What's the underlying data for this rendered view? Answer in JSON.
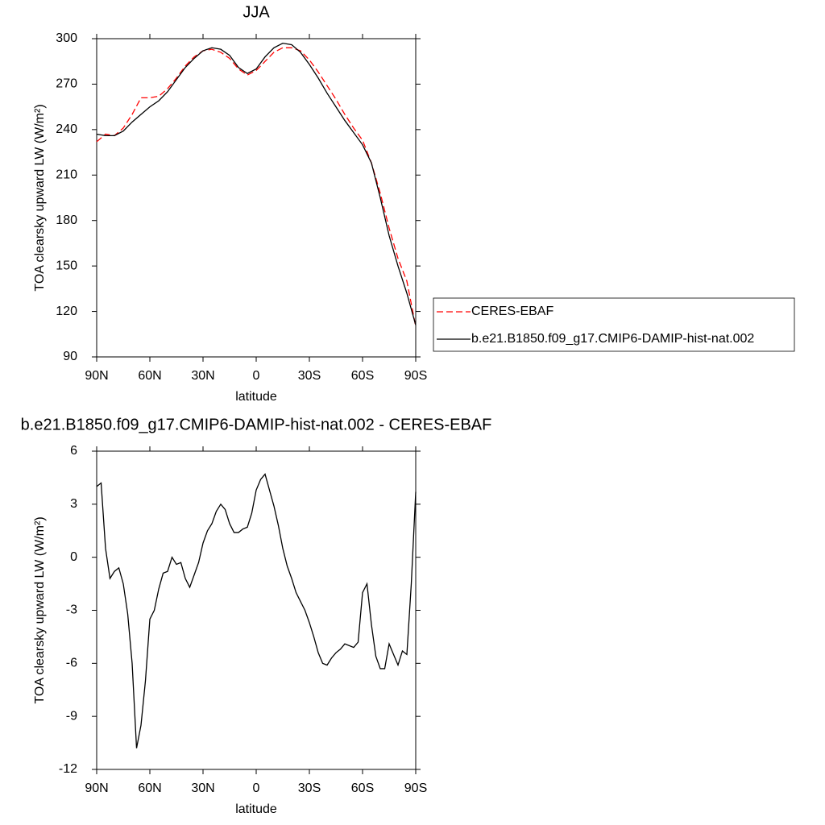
{
  "chart_data": [
    {
      "type": "line",
      "title": "JJA",
      "x_label": "latitude",
      "y_label": "TOA clearsky upward LW (W/m²)",
      "x": [
        90,
        85,
        80,
        75,
        70,
        65,
        60,
        55,
        50,
        45,
        40,
        35,
        30,
        25,
        20,
        15,
        10,
        5,
        0,
        -5,
        -10,
        -15,
        -20,
        -25,
        -30,
        -35,
        -40,
        -45,
        -50,
        -55,
        -60,
        -65,
        -70,
        -75,
        -80,
        -85,
        -90
      ],
      "series": [
        {
          "name": "CERES-EBAF",
          "color": "#ff0000",
          "dashed": true,
          "values": [
            232,
            237,
            236,
            241,
            250,
            261,
            261,
            262,
            267,
            274,
            282,
            288,
            292,
            293,
            291,
            287,
            280,
            276,
            279,
            285,
            291,
            294,
            294,
            292,
            286,
            278,
            269,
            260,
            250,
            241,
            233,
            218,
            198,
            175,
            155,
            140,
            110
          ]
        },
        {
          "name": "b.e21.B1850.f09_g17.CMIP6-DAMIP-hist-nat.002",
          "color": "#000000",
          "dashed": false,
          "values": [
            237,
            236,
            236,
            239,
            245,
            250,
            255,
            259,
            265,
            273,
            281,
            287,
            292,
            294,
            293,
            289,
            281,
            277,
            280,
            288,
            294,
            297,
            296,
            291,
            283,
            274,
            264,
            255,
            246,
            238,
            230,
            218,
            195,
            170,
            150,
            132,
            111
          ]
        }
      ],
      "xlim": [
        90,
        -90
      ],
      "xticks": [
        {
          "value": 90,
          "label": "90N"
        },
        {
          "value": 60,
          "label": "60N"
        },
        {
          "value": 30,
          "label": "30N"
        },
        0,
        {
          "value": -30,
          "label": "30S"
        },
        {
          "value": -60,
          "label": "60S"
        },
        {
          "value": -90,
          "label": "90S"
        }
      ],
      "ylim": [
        90,
        300
      ],
      "yticks": [
        90,
        120,
        150,
        180,
        210,
        240,
        270,
        300
      ],
      "legend": "right"
    },
    {
      "type": "line",
      "title": "b.e21.B1850.f09_g17.CMIP6-DAMIP-hist-nat.002 - CERES-EBAF",
      "x_label": "latitude",
      "y_label": "TOA clearsky upward LW (W/m²)",
      "x": [
        90,
        87.5,
        85,
        82.5,
        80,
        77.5,
        75,
        72.5,
        70,
        67.5,
        65,
        62.5,
        60,
        57.5,
        55,
        52.5,
        50,
        47.5,
        45,
        42.5,
        40,
        37.5,
        35,
        32.5,
        30,
        27.5,
        25,
        22.5,
        20,
        17.5,
        15,
        12.5,
        10,
        7.5,
        5,
        2.5,
        0,
        -2.5,
        -5,
        -7.5,
        -10,
        -12.5,
        -15,
        -17.5,
        -20,
        -22.5,
        -25,
        -27.5,
        -30,
        -32.5,
        -35,
        -37.5,
        -40,
        -42.5,
        -45,
        -47.5,
        -50,
        -52.5,
        -55,
        -57.5,
        -60,
        -62.5,
        -65,
        -67.5,
        -70,
        -72.5,
        -75,
        -77.5,
        -80,
        -82.5,
        -85,
        -87.5,
        -90
      ],
      "series": [
        {
          "color": "#000000",
          "dashed": false,
          "values": [
            4.0,
            4.2,
            0.5,
            -1.2,
            -0.8,
            -0.6,
            -1.5,
            -3.2,
            -6,
            -10.8,
            -9.5,
            -7,
            -3.5,
            -3,
            -1.8,
            -0.9,
            -0.8,
            0,
            -0.4,
            -0.3,
            -1.2,
            -1.7,
            -1.0,
            -0.3,
            0.8,
            1.5,
            1.9,
            2.6,
            3.0,
            2.7,
            1.9,
            1.4,
            1.4,
            1.6,
            1.7,
            2.5,
            3.8,
            4.4,
            4.7,
            3.8,
            2.9,
            1.8,
            0.5,
            -0.5,
            -1.2,
            -2,
            -2.5,
            -3,
            -3.7,
            -4.5,
            -5.4,
            -6.0,
            -6.1,
            -5.7,
            -5.4,
            -5.2,
            -4.9,
            -5.0,
            -5.1,
            -4.8,
            -2.0,
            -1.5,
            -3.8,
            -5.6,
            -6.3,
            -6.3,
            -4.9,
            -5.5,
            -6.1,
            -5.3,
            -5.5,
            -1.5,
            3.7
          ]
        }
      ],
      "xlim": [
        90,
        -90
      ],
      "xticks": [
        {
          "value": 90,
          "label": "90N"
        },
        {
          "value": 60,
          "label": "60N"
        },
        {
          "value": 30,
          "label": "30N"
        },
        0,
        {
          "value": -30,
          "label": "30S"
        },
        {
          "value": -60,
          "label": "60S"
        },
        {
          "value": -90,
          "label": "90S"
        }
      ],
      "ylim": [
        -12,
        6
      ],
      "yticks": [
        -12,
        -9,
        -6,
        -3,
        0,
        3,
        6
      ]
    }
  ]
}
